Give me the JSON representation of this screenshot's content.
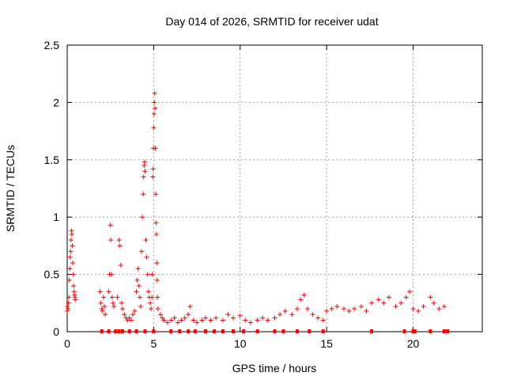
{
  "chart_data": {
    "type": "scatter",
    "title": "Day 014 of 2026, SRMTID for receiver udat",
    "xlabel": "GPS time / hours",
    "ylabel": "SRMTID / TECUs",
    "xlim": [
      0,
      24
    ],
    "ylim": [
      0,
      2.5
    ],
    "xticks": [
      0,
      5,
      10,
      15,
      20
    ],
    "yticks": [
      0,
      0.5,
      1,
      1.5,
      2,
      2.5
    ],
    "ytick_labels": [
      "0",
      "0.5",
      "1",
      "1.5",
      "2",
      "2.5"
    ],
    "grid": true,
    "marker": "plus",
    "series": [
      {
        "name": "SRMTID",
        "color": "#ff0000",
        "points": [
          [
            0.0,
            0.18
          ],
          [
            0.02,
            0.22
          ],
          [
            0.05,
            0.2
          ],
          [
            0.08,
            0.25
          ],
          [
            0.1,
            0.3
          ],
          [
            0.12,
            0.45
          ],
          [
            0.15,
            0.55
          ],
          [
            0.17,
            0.65
          ],
          [
            0.2,
            0.7
          ],
          [
            0.22,
            0.8
          ],
          [
            0.25,
            0.88
          ],
          [
            0.27,
            0.85
          ],
          [
            0.3,
            0.75
          ],
          [
            0.32,
            0.6
          ],
          [
            0.35,
            0.5
          ],
          [
            0.37,
            0.4
          ],
          [
            0.4,
            0.35
          ],
          [
            0.42,
            0.32
          ],
          [
            0.45,
            0.3
          ],
          [
            0.47,
            0.28
          ],
          [
            1.9,
            0.35
          ],
          [
            1.95,
            0.25
          ],
          [
            2.0,
            0.2
          ],
          [
            2.05,
            0.18
          ],
          [
            2.1,
            0.3
          ],
          [
            2.15,
            0.22
          ],
          [
            2.2,
            0.15
          ],
          [
            2.4,
            0.35
          ],
          [
            2.45,
            0.5
          ],
          [
            2.5,
            0.93
          ],
          [
            2.52,
            0.8
          ],
          [
            2.55,
            0.5
          ],
          [
            2.6,
            0.3
          ],
          [
            2.65,
            0.25
          ],
          [
            2.7,
            0.22
          ],
          [
            2.9,
            0.3
          ],
          [
            3.0,
            0.8
          ],
          [
            3.05,
            0.75
          ],
          [
            3.1,
            0.58
          ],
          [
            3.15,
            0.25
          ],
          [
            3.2,
            0.2
          ],
          [
            3.3,
            0.15
          ],
          [
            3.4,
            0.12
          ],
          [
            3.5,
            0.1
          ],
          [
            3.6,
            0.12
          ],
          [
            3.7,
            0.1
          ],
          [
            3.8,
            0.15
          ],
          [
            3.9,
            0.18
          ],
          [
            4.0,
            0.35
          ],
          [
            4.05,
            0.45
          ],
          [
            4.1,
            0.55
          ],
          [
            4.15,
            0.4
          ],
          [
            4.2,
            0.3
          ],
          [
            4.25,
            0.22
          ],
          [
            4.3,
            0.7
          ],
          [
            4.35,
            1.0
          ],
          [
            4.4,
            1.2
          ],
          [
            4.42,
            1.35
          ],
          [
            4.45,
            1.45
          ],
          [
            4.48,
            1.48
          ],
          [
            4.5,
            1.4
          ],
          [
            4.55,
            0.8
          ],
          [
            4.6,
            0.65
          ],
          [
            4.65,
            0.5
          ],
          [
            4.7,
            0.35
          ],
          [
            4.75,
            0.3
          ],
          [
            4.8,
            0.25
          ],
          [
            4.85,
            0.2
          ],
          [
            4.9,
            0.3
          ],
          [
            4.92,
            0.5
          ],
          [
            4.95,
            1.35
          ],
          [
            4.97,
            1.42
          ],
          [
            4.99,
            1.6
          ],
          [
            5.0,
            1.78
          ],
          [
            5.02,
            1.9
          ],
          [
            5.04,
            2.0
          ],
          [
            5.06,
            2.08
          ],
          [
            5.08,
            1.95
          ],
          [
            5.1,
            1.6
          ],
          [
            5.12,
            1.2
          ],
          [
            5.14,
            0.95
          ],
          [
            5.16,
            0.85
          ],
          [
            5.18,
            0.6
          ],
          [
            5.2,
            0.45
          ],
          [
            5.22,
            0.3
          ],
          [
            5.25,
            0.2
          ],
          [
            5.4,
            0.15
          ],
          [
            5.5,
            0.12
          ],
          [
            5.6,
            0.1
          ],
          [
            5.8,
            0.08
          ],
          [
            6.0,
            0.1
          ],
          [
            6.2,
            0.12
          ],
          [
            6.4,
            0.08
          ],
          [
            6.6,
            0.1
          ],
          [
            6.8,
            0.12
          ],
          [
            7.0,
            0.15
          ],
          [
            7.1,
            0.22
          ],
          [
            7.3,
            0.1
          ],
          [
            7.5,
            0.08
          ],
          [
            7.8,
            0.1
          ],
          [
            8.0,
            0.12
          ],
          [
            8.3,
            0.1
          ],
          [
            8.6,
            0.12
          ],
          [
            9.0,
            0.1
          ],
          [
            9.3,
            0.15
          ],
          [
            9.6,
            0.12
          ],
          [
            10.0,
            0.14
          ],
          [
            10.3,
            0.1
          ],
          [
            10.6,
            0.08
          ],
          [
            11.0,
            0.1
          ],
          [
            11.3,
            0.12
          ],
          [
            11.6,
            0.1
          ],
          [
            12.0,
            0.12
          ],
          [
            12.3,
            0.15
          ],
          [
            12.6,
            0.18
          ],
          [
            13.0,
            0.15
          ],
          [
            13.3,
            0.2
          ],
          [
            13.5,
            0.28
          ],
          [
            13.7,
            0.32
          ],
          [
            13.9,
            0.2
          ],
          [
            14.2,
            0.15
          ],
          [
            14.5,
            0.12
          ],
          [
            14.8,
            0.1
          ],
          [
            15.0,
            0.18
          ],
          [
            15.3,
            0.2
          ],
          [
            15.6,
            0.22
          ],
          [
            16.0,
            0.2
          ],
          [
            16.3,
            0.18
          ],
          [
            16.6,
            0.2
          ],
          [
            17.0,
            0.22
          ],
          [
            17.3,
            0.18
          ],
          [
            17.6,
            0.25
          ],
          [
            18.0,
            0.28
          ],
          [
            18.3,
            0.25
          ],
          [
            18.6,
            0.3
          ],
          [
            19.0,
            0.22
          ],
          [
            19.3,
            0.25
          ],
          [
            19.6,
            0.3
          ],
          [
            19.8,
            0.35
          ],
          [
            20.0,
            0.2
          ],
          [
            20.3,
            0.18
          ],
          [
            20.6,
            0.22
          ],
          [
            21.0,
            0.3
          ],
          [
            21.2,
            0.25
          ],
          [
            21.5,
            0.2
          ],
          [
            21.8,
            0.22
          ]
        ]
      }
    ],
    "zero_markers": [
      2.0,
      2.4,
      2.8,
      3.0,
      3.2,
      3.6,
      4.0,
      4.5,
      5.0,
      6.0,
      6.5,
      7.0,
      7.4,
      8.0,
      8.5,
      9.0,
      9.6,
      10.2,
      11.0,
      12.0,
      12.5,
      13.3,
      14.0,
      14.8,
      17.6,
      19.5,
      20.0,
      20.1,
      21.0,
      21.8,
      22.0
    ]
  }
}
